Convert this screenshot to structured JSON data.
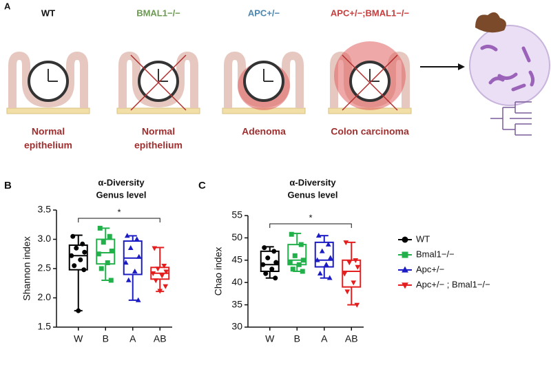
{
  "panel_a": {
    "label": "A",
    "groups": [
      {
        "title": "WT",
        "color": "#111111",
        "description": [
          "Normal",
          "epithelium"
        ]
      },
      {
        "title": "BMAL1−/−",
        "color": "#6a9a50",
        "description": [
          "Normal",
          "epithelium"
        ]
      },
      {
        "title": "APC+/−",
        "color": "#4a86b0",
        "description": [
          "Adenoma"
        ]
      },
      {
        "title": "APC+/−;BMAL1−/−",
        "color": "#c83c3c",
        "description": [
          "Colon carcinoma"
        ]
      }
    ]
  },
  "legend": {
    "names": [
      "WT",
      "Bmal1−/−",
      "Apc+/−",
      "Apc+/− ; Bmal1−/−"
    ],
    "colors": [
      "#000000",
      "#22b04a",
      "#1c1cc4",
      "#e41e1e"
    ],
    "markers": [
      "circle",
      "square",
      "triangle-up",
      "triangle-down"
    ]
  },
  "chart_data": [
    {
      "type": "box",
      "panel": "B",
      "title": "α-Diversity",
      "subtitle": "Genus level",
      "ylabel": "Shannon index",
      "annotation": "*",
      "categories": [
        "W",
        "B",
        "A",
        "AB"
      ],
      "ylim": [
        1.5,
        3.5
      ],
      "yticks": [
        1.5,
        {
          "value": 2,
          "label": "2.0"
        },
        2.5,
        {
          "value": 3,
          "label": "3.0"
        },
        3.5
      ],
      "boxes": [
        {
          "min": 1.78,
          "q1": 2.48,
          "median": 2.72,
          "q3": 2.9,
          "max": 3.07,
          "points": [
            3.05,
            2.92,
            2.85,
            2.78,
            2.72,
            2.65,
            2.55,
            2.48,
            1.78
          ]
        },
        {
          "min": 2.3,
          "q1": 2.58,
          "median": 2.77,
          "q3": 3.0,
          "max": 3.19,
          "points": [
            3.19,
            3.05,
            2.95,
            2.8,
            2.75,
            2.6,
            2.5,
            2.3
          ]
        },
        {
          "min": 1.96,
          "q1": 2.4,
          "median": 2.68,
          "q3": 2.97,
          "max": 3.06,
          "points": [
            3.06,
            3.0,
            2.85,
            2.7,
            2.6,
            2.45,
            2.3,
            1.96
          ]
        },
        {
          "min": 2.11,
          "q1": 2.32,
          "median": 2.42,
          "q3": 2.52,
          "max": 2.86,
          "points": [
            2.85,
            2.55,
            2.5,
            2.45,
            2.42,
            2.38,
            2.3,
            2.2,
            2.12
          ]
        }
      ]
    },
    {
      "type": "box",
      "panel": "C",
      "title": "α-Diversity",
      "subtitle": "Genus level",
      "ylabel": "Chao index",
      "annotation": "*",
      "categories": [
        "W",
        "B",
        "A",
        "AB"
      ],
      "ylim": [
        30,
        55
      ],
      "yticks": [
        30,
        35,
        40,
        45,
        50,
        55
      ],
      "boxes": [
        {
          "min": 41,
          "q1": 42.5,
          "median": 44,
          "q3": 47,
          "max": 48,
          "points": [
            47.8,
            47,
            45.5,
            44.5,
            44,
            43,
            42,
            41
          ]
        },
        {
          "min": 42.5,
          "q1": 44,
          "median": 45,
          "q3": 48.5,
          "max": 51,
          "points": [
            50.8,
            48.5,
            46,
            45,
            44.5,
            44,
            43,
            42.5
          ]
        },
        {
          "min": 41,
          "q1": 43.5,
          "median": 45,
          "q3": 49,
          "max": 50.5,
          "points": [
            50.5,
            48.5,
            47,
            45.5,
            45,
            44,
            42,
            41
          ]
        },
        {
          "min": 35,
          "q1": 39,
          "median": 42.5,
          "q3": 45,
          "max": 49,
          "points": [
            49,
            45,
            44.5,
            43.5,
            42,
            40,
            38,
            35
          ]
        }
      ]
    }
  ]
}
